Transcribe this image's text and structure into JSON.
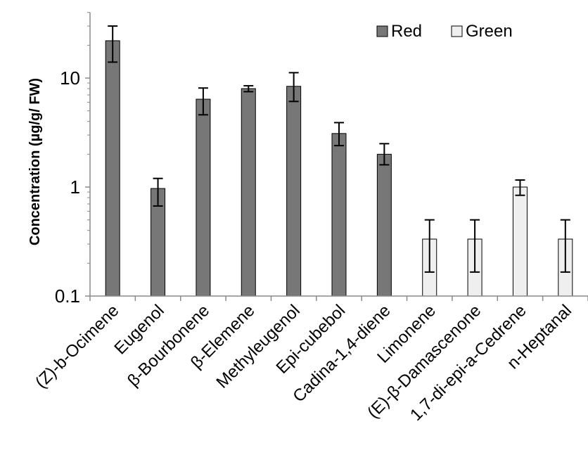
{
  "chart_data": {
    "type": "bar",
    "title": "",
    "xlabel": "",
    "ylabel": "Concentration (µg/g/ FW)",
    "y_scale": "log",
    "ylim": [
      0.1,
      40
    ],
    "y_ticks": [
      0.1,
      1,
      10
    ],
    "y_tick_labels": [
      "0.1",
      "1",
      "10"
    ],
    "grid": false,
    "legend_position": "top-right",
    "categories": [
      "(Z)-b-Ocimene",
      "Eugenol",
      "β-Bourbonene",
      "β-Elemene",
      "Methyleugenol",
      "Epi-cubebol",
      "Cadina-1,4-diene",
      "Limonene",
      "(E)-β-Damascenone",
      "1,7-di-epi-a-Cedrene",
      "n-Heptanal"
    ],
    "series": [
      {
        "name": "Red",
        "color": "#777777",
        "values": [
          22,
          0.97,
          6.4,
          8.0,
          8.4,
          3.1,
          2.0,
          null,
          null,
          null,
          null
        ],
        "error_low": [
          14,
          0.67,
          4.6,
          7.5,
          6.1,
          2.4,
          1.6,
          null,
          null,
          null,
          null
        ],
        "error_high": [
          30,
          1.2,
          8.1,
          8.5,
          11.2,
          3.9,
          2.5,
          null,
          null,
          null,
          null
        ]
      },
      {
        "name": "Green",
        "color": "#efefef",
        "values": [
          null,
          null,
          null,
          null,
          null,
          null,
          null,
          0.333,
          0.333,
          1.0,
          0.333
        ],
        "error_low": [
          null,
          null,
          null,
          null,
          null,
          null,
          null,
          0.166,
          0.166,
          0.84,
          0.166
        ],
        "error_high": [
          null,
          null,
          null,
          null,
          null,
          null,
          null,
          0.5,
          0.5,
          1.16,
          0.5
        ]
      }
    ]
  }
}
